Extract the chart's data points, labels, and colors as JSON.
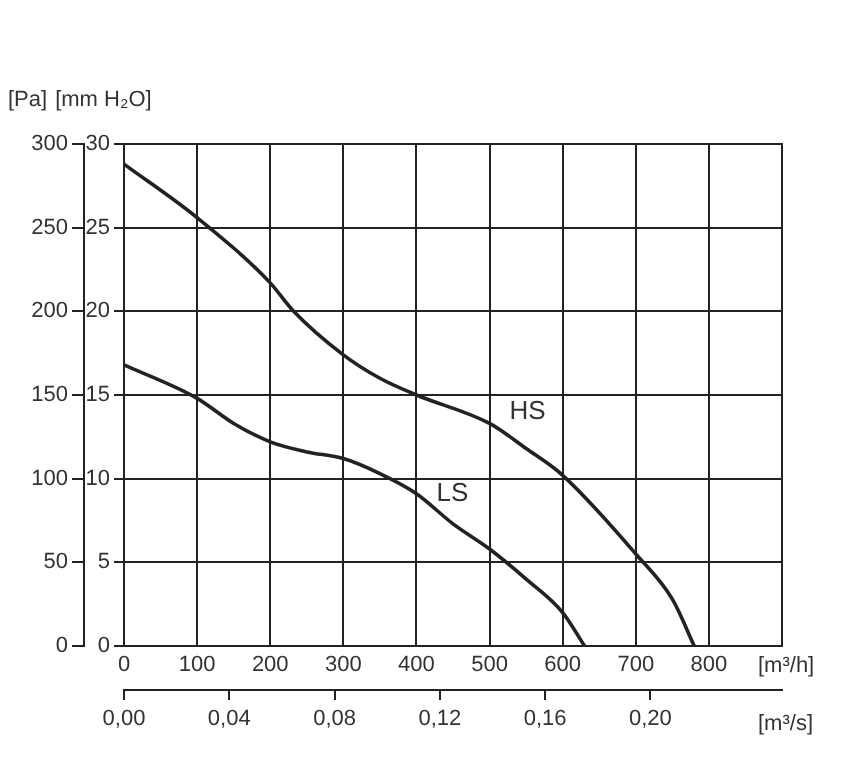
{
  "chart_data": {
    "type": "line",
    "xlabel": "[m³/h]",
    "x2label": "[m³/s]",
    "ylabel": "[Pa]",
    "y2label": "[mm H₂O]",
    "xlim": [
      0,
      900
    ],
    "xticks": [
      0,
      100,
      200,
      300,
      400,
      500,
      600,
      700,
      800
    ],
    "x2lim": [
      0,
      0.25
    ],
    "x2ticks": [
      {
        "value": 0,
        "label": "0,00"
      },
      {
        "value": 0.04,
        "label": "0,04"
      },
      {
        "value": 0.08,
        "label": "0,08"
      },
      {
        "value": 0.12,
        "label": "0,12"
      },
      {
        "value": 0.16,
        "label": "0,16"
      },
      {
        "value": 0.2,
        "label": "0,20"
      }
    ],
    "ylim": [
      0,
      300
    ],
    "yticks": [
      0,
      50,
      100,
      150,
      200,
      250,
      300
    ],
    "y2lim": [
      0,
      30
    ],
    "y2ticks": [
      0,
      5,
      10,
      15,
      20,
      25,
      30
    ],
    "grid": true,
    "legend": false,
    "marker": "none",
    "line_style": "solid",
    "series": [
      {
        "name": "HS",
        "color": "#222222",
        "x": [
          0,
          100,
          200,
          230,
          300,
          350,
          400,
          500,
          550,
          600,
          700,
          750,
          780
        ],
        "values": [
          288,
          256,
          217,
          201,
          174,
          160,
          150,
          133,
          118,
          102,
          55,
          28,
          0
        ]
      },
      {
        "name": "LS",
        "color": "#222222",
        "x": [
          0,
          100,
          150,
          200,
          250,
          300,
          350,
          400,
          450,
          500,
          550,
          600,
          630
        ],
        "values": [
          168,
          148,
          133,
          122,
          116,
          112,
          103,
          91,
          73,
          58,
          40,
          20,
          0
        ]
      }
    ]
  }
}
